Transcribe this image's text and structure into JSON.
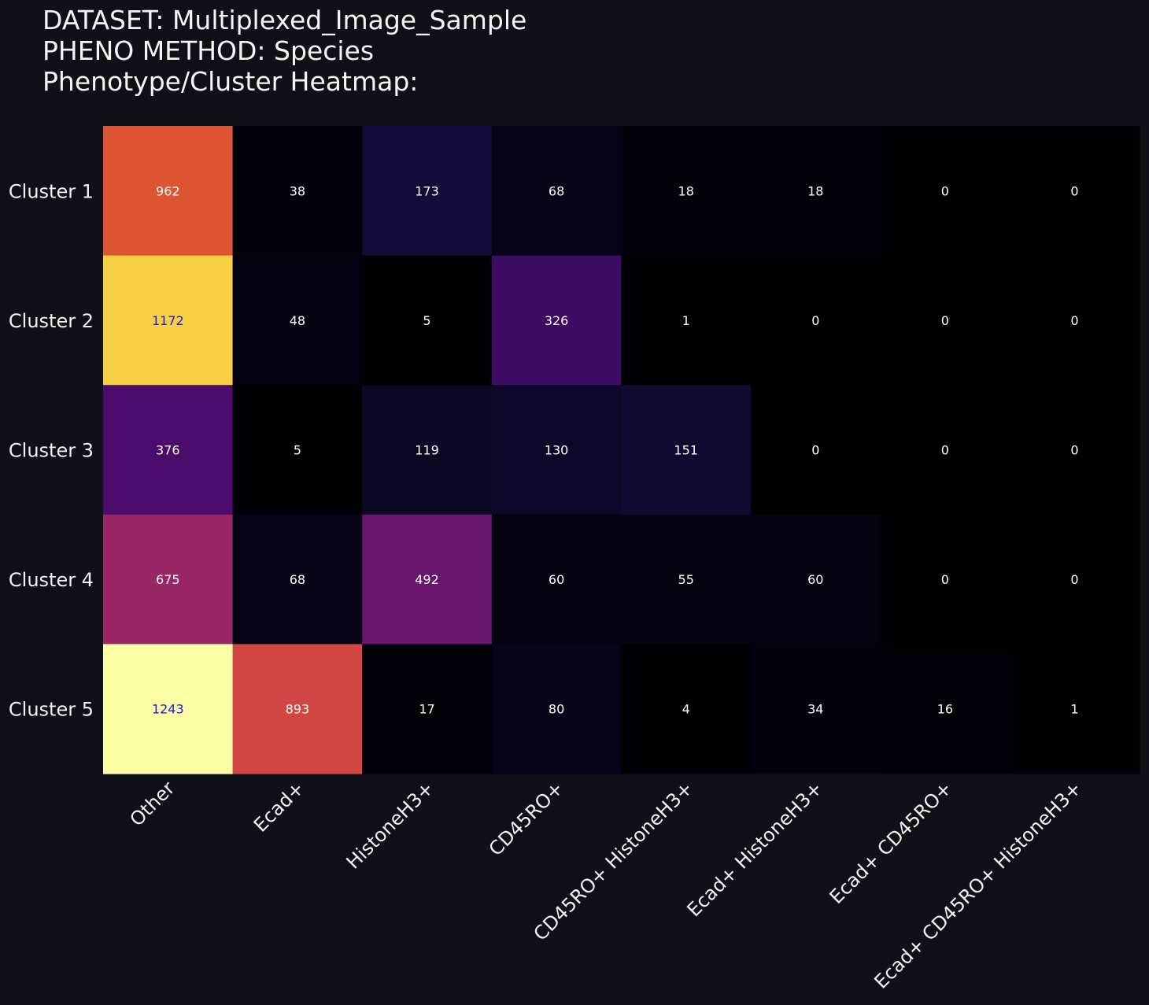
{
  "title": {
    "line1": "DATASET: Multiplexed_Image_Sample",
    "line2": "PHENO METHOD: Species",
    "line3": "Phenotype/Cluster Heatmap:"
  },
  "chart_data": {
    "type": "heatmap",
    "title": "Phenotype/Cluster Heatmap:",
    "rows": [
      "Cluster 1",
      "Cluster 2",
      "Cluster 3",
      "Cluster 4",
      "Cluster 5"
    ],
    "columns": [
      "Other",
      "Ecad+",
      "HistoneH3+",
      "CD45RO+",
      "CD45RO+ HistoneH3+",
      "Ecad+ HistoneH3+",
      "Ecad+ CD45RO+",
      "Ecad+ CD45RO+ HistoneH3+"
    ],
    "values": [
      [
        962,
        38,
        173,
        68,
        18,
        18,
        0,
        0
      ],
      [
        1172,
        48,
        5,
        326,
        1,
        0,
        0,
        0
      ],
      [
        376,
        5,
        119,
        130,
        151,
        0,
        0,
        0
      ],
      [
        675,
        68,
        492,
        60,
        55,
        60,
        0,
        0
      ],
      [
        1243,
        893,
        17,
        80,
        4,
        34,
        16,
        1
      ]
    ],
    "colormap": "inferno",
    "value_range": [
      0,
      1243
    ],
    "text_colors": {
      "light": "#ffffff",
      "dark": "#1a1adc"
    }
  }
}
